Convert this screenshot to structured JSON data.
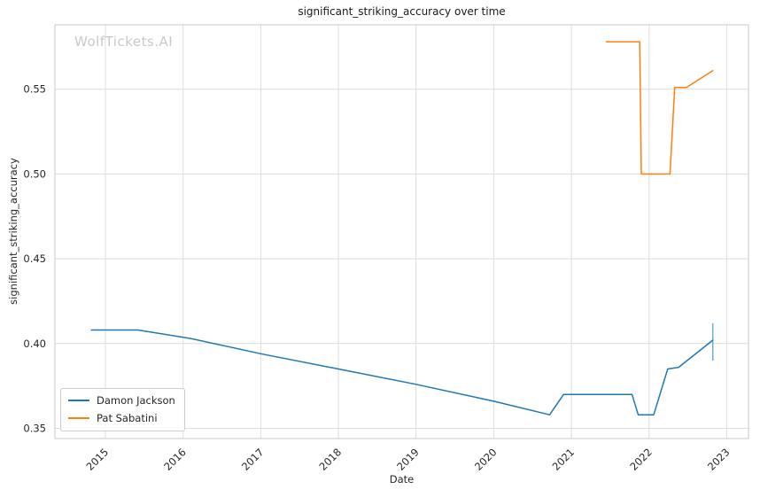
{
  "figure": {
    "watermark": "WolfTickets.AI"
  },
  "chart_data": {
    "type": "line",
    "title": "significant_striking_accuracy over time",
    "xlabel": "Date",
    "ylabel": "significant_striking_accuracy",
    "grid": true,
    "legend_position": "lower-left",
    "xlim": [
      2014.35,
      2023.28
    ],
    "ylim": [
      0.344,
      0.588
    ],
    "x_ticks": [
      2015,
      2016,
      2017,
      2018,
      2019,
      2020,
      2021,
      2022,
      2023
    ],
    "x_tick_labels": [
      "2015",
      "2016",
      "2017",
      "2018",
      "2019",
      "2020",
      "2021",
      "2022",
      "2023"
    ],
    "y_ticks": [
      0.35,
      0.4,
      0.45,
      0.5,
      0.55
    ],
    "y_tick_labels": [
      "0.35",
      "0.40",
      "0.45",
      "0.50",
      "0.55"
    ],
    "series": [
      {
        "name": "Damon Jackson",
        "color": "#1f77b4",
        "x": [
          2014.82,
          2015.42,
          2016.1,
          2017.0,
          2018.0,
          2019.0,
          2020.0,
          2020.72,
          2020.9,
          2021.78,
          2021.86,
          2022.06,
          2022.24,
          2022.38,
          2022.82
        ],
        "y": [
          0.408,
          0.408,
          0.403,
          0.394,
          0.385,
          0.376,
          0.366,
          0.358,
          0.37,
          0.37,
          0.358,
          0.358,
          0.385,
          0.386,
          0.402
        ]
      },
      {
        "name": "Pat Sabatini",
        "color": "#ff7f0e",
        "x": [
          2021.45,
          2021.88,
          2021.9,
          2022.27,
          2022.33,
          2022.48,
          2022.82
        ],
        "y": [
          0.578,
          0.578,
          0.5,
          0.5,
          0.551,
          0.551,
          0.561
        ]
      }
    ],
    "error_bar": {
      "series": "Damon Jackson",
      "x": 2022.82,
      "y_low": 0.39,
      "y_high": 0.412,
      "color": "#6baed6"
    }
  }
}
